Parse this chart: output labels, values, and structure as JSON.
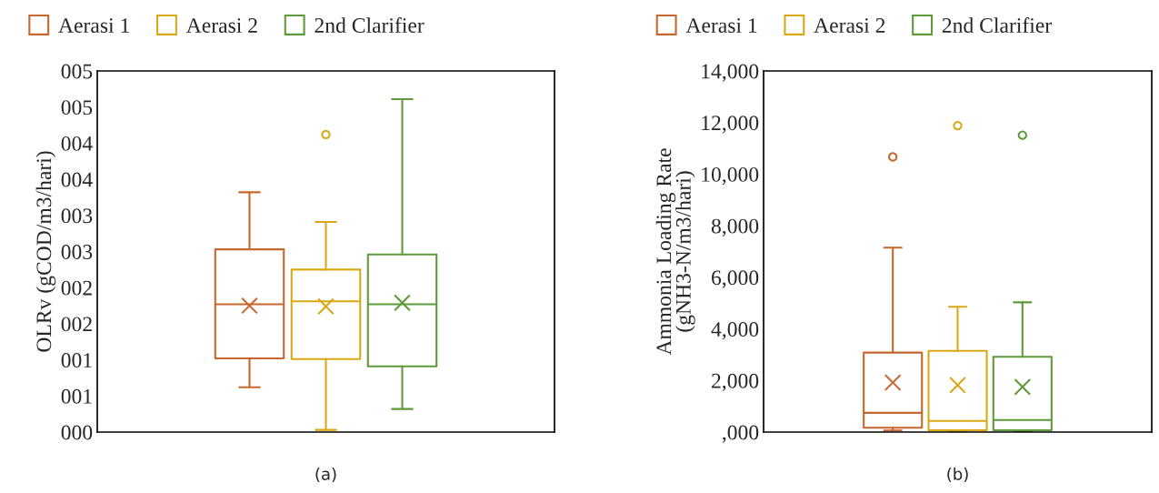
{
  "chart_data": [
    {
      "type": "box",
      "ylabel": "OLRv (gCOD/m3/hari)",
      "categories": [
        null
      ],
      "legend": "top left",
      "grid": false,
      "tick_labels": "y",
      "ylim": [
        0,
        5
      ],
      "yticks": [
        {
          "value": 0,
          "label": "000"
        },
        {
          "value": 0.5,
          "label": "001"
        },
        {
          "value": 1,
          "label": "001"
        },
        {
          "value": 1.5,
          "label": "002"
        },
        {
          "value": 2,
          "label": "002"
        },
        {
          "value": 2.5,
          "label": "003"
        },
        {
          "value": 3,
          "label": "003"
        },
        {
          "value": 3.5,
          "label": "004"
        },
        {
          "value": 4,
          "label": "004"
        },
        {
          "value": 4.5,
          "label": "005"
        },
        {
          "value": 5,
          "label": "005"
        }
      ],
      "series": [
        {
          "name": "Aerasi 1",
          "color": "#c5672e",
          "boxes": [
            {
              "low": 0.62,
              "q1": 1.02,
              "median": 1.77,
              "q3": 2.53,
              "high": 3.32,
              "mean": 1.75
            }
          ]
        },
        {
          "name": "Aerasi 2",
          "color": "#d9a915",
          "boxes": [
            {
              "low": 0.03,
              "q1": 1.01,
              "median": 1.81,
              "q3": 2.25,
              "high": 2.91,
              "mean": 1.74,
              "outliers": [
                4.12
              ]
            }
          ]
        },
        {
          "name": "2nd Clarifier",
          "color": "#5e9a3a",
          "boxes": [
            {
              "low": 0.32,
              "q1": 0.91,
              "median": 1.77,
              "q3": 2.46,
              "high": 4.61,
              "mean": 1.79
            }
          ]
        }
      ],
      "annotations": [
        "(a)"
      ]
    },
    {
      "type": "box",
      "ylabel": "Ammonia Loading Rate\n(gNH3-N/m3/hari)",
      "categories": [
        null
      ],
      "legend": "top left",
      "grid": false,
      "tick_labels": "y",
      "ylim": [
        0,
        14000
      ],
      "yticks": [
        {
          "value": 0,
          "label": ",000"
        },
        {
          "value": 2000,
          "label": "2,000"
        },
        {
          "value": 4000,
          "label": "4,000"
        },
        {
          "value": 6000,
          "label": "6,000"
        },
        {
          "value": 8000,
          "label": "8,000"
        },
        {
          "value": 10000,
          "label": "10,000"
        },
        {
          "value": 12000,
          "label": "12,000"
        },
        {
          "value": 14000,
          "label": "14,000"
        }
      ],
      "series": [
        {
          "name": "Aerasi 1",
          "color": "#c5672e",
          "boxes": [
            {
              "low": 60,
              "q1": 170,
              "median": 745,
              "q3": 3080,
              "high": 7150,
              "mean": 1920,
              "outliers": [
                10670
              ]
            }
          ]
        },
        {
          "name": "Aerasi 2",
          "color": "#d9a915",
          "boxes": [
            {
              "low": 30,
              "q1": 70,
              "median": 430,
              "q3": 3150,
              "high": 4860,
              "mean": 1820,
              "outliers": [
                11880
              ]
            }
          ]
        },
        {
          "name": "2nd Clarifier",
          "color": "#5e9a3a",
          "boxes": [
            {
              "low": 30,
              "q1": 70,
              "median": 470,
              "q3": 2920,
              "high": 5030,
              "mean": 1750,
              "outliers": [
                11510
              ]
            }
          ]
        }
      ],
      "annotations": [
        "(b)"
      ]
    }
  ]
}
